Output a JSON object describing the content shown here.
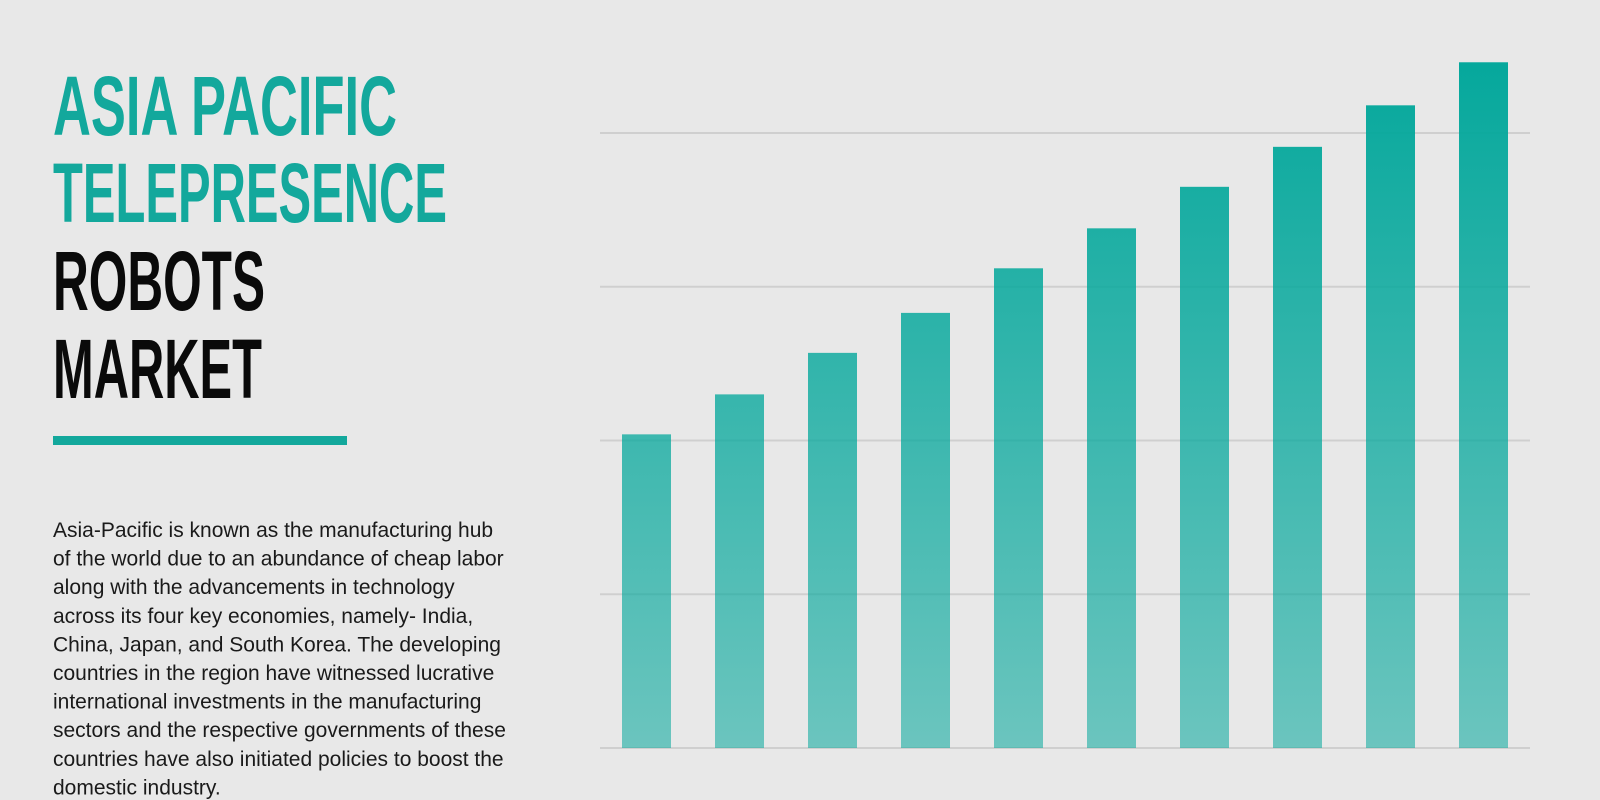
{
  "title_lines": [
    "ASIA PACIFIC",
    "TELEPRESENCE",
    "ROBOTS",
    "MARKET"
  ],
  "body_lines": [
    "Asia-Pacific is known as the manufacturing hub",
    "of the world due to an abundance of cheap labor",
    "along with the advancements in technology",
    "across its four key economies, namely- India,",
    "China, Japan, and South Korea. The developing",
    "countries in the region have witnessed lucrative",
    "international investments in the manufacturing",
    "sectors and the respective governments of these",
    "countries have also initiated policies to boost the",
    "domestic industry."
  ],
  "chart_data": {
    "type": "bar",
    "values": [
      2.04,
      2.3,
      2.57,
      2.83,
      3.12,
      3.38,
      3.65,
      3.91,
      4.18,
      4.46
    ],
    "color": "#05a89c",
    "ylim": [
      0,
      4.5
    ],
    "yticks": [
      0,
      1,
      2,
      3,
      4
    ],
    "grid": true
  }
}
